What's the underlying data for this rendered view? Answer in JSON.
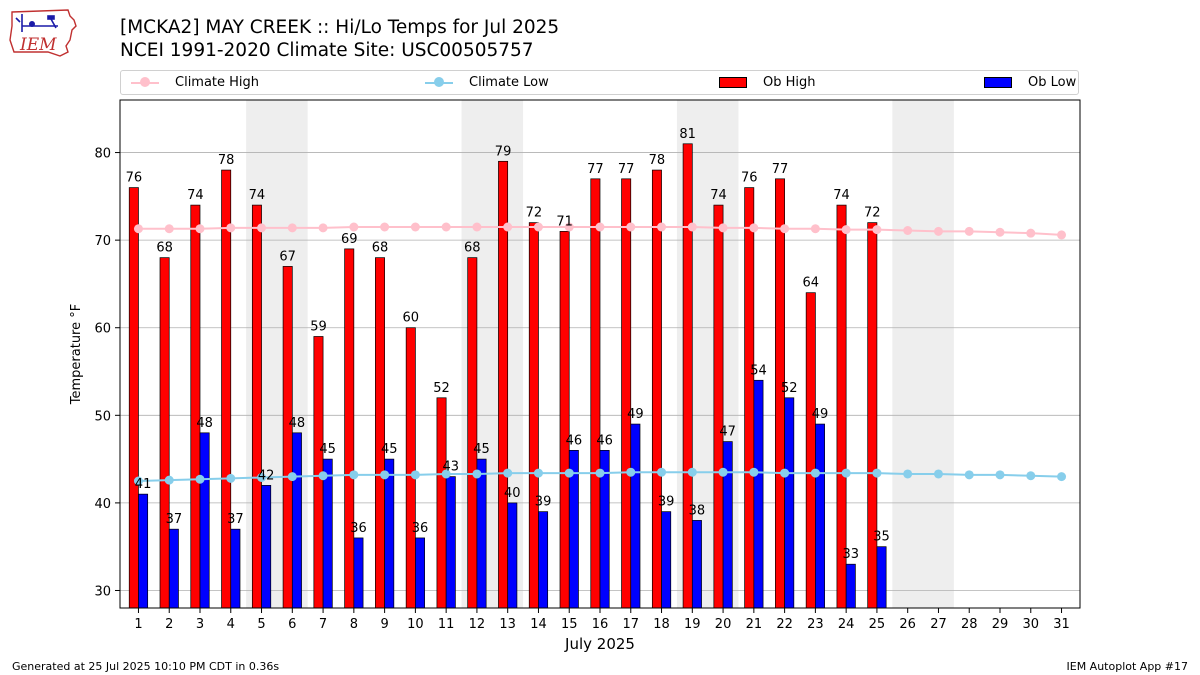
{
  "logo_text": "IEM",
  "title_line1": "[MCKA2] MAY CREEK :: Hi/Lo Temps for Jul 2025",
  "title_line2": "NCEI 1991-2020 Climate Site: USC00505757",
  "legend": {
    "climate_high": "Climate High",
    "climate_low": "Climate Low",
    "ob_high": "Ob High",
    "ob_low": "Ob Low"
  },
  "footer_left": "Generated at 25 Jul 2025 10:10 PM CDT in 0.36s",
  "footer_right": "IEM Autoplot App #17",
  "colors": {
    "ob_high": "#ff0000",
    "ob_low": "#0000ff",
    "climate_high": "#ffc0cb",
    "climate_low": "#87ceeb",
    "weekend_shade": "#eeeeee",
    "grid": "#b0b0b0"
  },
  "chart_data": {
    "type": "bar",
    "xlabel": "July 2025",
    "ylabel": "Temperature °F",
    "ylim": [
      28,
      86
    ],
    "yticks": [
      30,
      40,
      50,
      60,
      70,
      80
    ],
    "grid": "horizontal",
    "legend_position": "top",
    "days": [
      1,
      2,
      3,
      4,
      5,
      6,
      7,
      8,
      9,
      10,
      11,
      12,
      13,
      14,
      15,
      16,
      17,
      18,
      19,
      20,
      21,
      22,
      23,
      24,
      25,
      26,
      27,
      28,
      29,
      30,
      31
    ],
    "weekend_shaded_days": [
      [
        5,
        6
      ],
      [
        12,
        13
      ],
      [
        19,
        20
      ],
      [
        26,
        27
      ]
    ],
    "ob_high": [
      76,
      68,
      74,
      78,
      74,
      67,
      59,
      69,
      68,
      60,
      52,
      68,
      79,
      72,
      71,
      77,
      77,
      78,
      81,
      74,
      76,
      77,
      64,
      74,
      72
    ],
    "ob_low": [
      41,
      37,
      48,
      37,
      42,
      48,
      45,
      36,
      45,
      36,
      43,
      45,
      40,
      39,
      46,
      46,
      49,
      39,
      38,
      47,
      54,
      52,
      49,
      33,
      35
    ],
    "climate_high": [
      71.3,
      71.3,
      71.3,
      71.4,
      71.4,
      71.4,
      71.4,
      71.5,
      71.5,
      71.5,
      71.5,
      71.5,
      71.5,
      71.5,
      71.5,
      71.5,
      71.5,
      71.5,
      71.5,
      71.4,
      71.4,
      71.3,
      71.3,
      71.2,
      71.2,
      71.1,
      71.0,
      71.0,
      70.9,
      70.8,
      70.6
    ],
    "climate_low": [
      42.5,
      42.6,
      42.7,
      42.8,
      42.9,
      43.0,
      43.1,
      43.2,
      43.2,
      43.2,
      43.3,
      43.3,
      43.4,
      43.4,
      43.4,
      43.4,
      43.5,
      43.5,
      43.5,
      43.5,
      43.5,
      43.4,
      43.4,
      43.4,
      43.4,
      43.3,
      43.3,
      43.2,
      43.2,
      43.1,
      43.0
    ]
  }
}
